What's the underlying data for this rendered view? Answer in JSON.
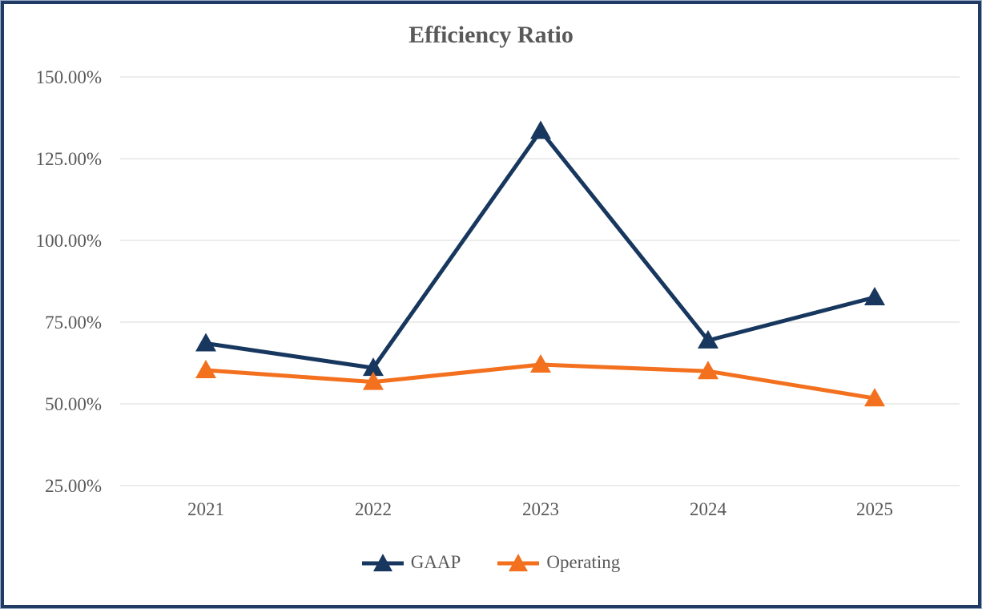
{
  "chart_data": {
    "type": "line",
    "title": "Efficiency Ratio",
    "x_categories": [
      "2021",
      "2022",
      "2023",
      "2024",
      "2025"
    ],
    "y_axis": {
      "ticks": [
        {
          "label": "150.00%",
          "value": 150
        },
        {
          "label": "125.00%",
          "value": 125
        },
        {
          "label": "100.00%",
          "value": 100
        },
        {
          "label": "75.00%",
          "value": 75
        },
        {
          "label": "50.00%",
          "value": 50
        },
        {
          "label": "25.00%",
          "value": 25
        }
      ],
      "min": 25,
      "max": 150,
      "grid": true
    },
    "series": [
      {
        "name": "GAAP",
        "color": "#17375E",
        "marker": "triangle",
        "values": [
          68.5,
          61.0,
          133.5,
          69.4,
          82.6
        ]
      },
      {
        "name": "Operating",
        "color": "#F3701E",
        "marker": "triangle",
        "values": [
          60.3,
          56.7,
          62.0,
          60.0,
          51.7
        ]
      }
    ],
    "legend_position": "bottom",
    "marker_shape": "triangle-up"
  },
  "colors": {
    "frame_border": "#1F3A63",
    "frame_outer_edge": "#9FB0CB",
    "gridline": "#E6E6E6",
    "text": "#595959",
    "background": "#FFFFFF"
  }
}
